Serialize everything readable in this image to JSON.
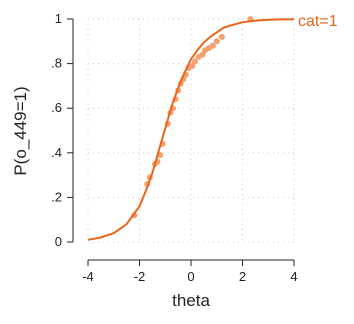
{
  "chart_data": {
    "type": "scatter",
    "xlabel": "theta",
    "ylabel": "P(o_449=1)",
    "xlim": [
      -4,
      4
    ],
    "ylim": [
      0,
      1
    ],
    "x_ticks": [
      "-4",
      "-2",
      "0",
      "2",
      "4"
    ],
    "x_tick_values": [
      -4,
      -2,
      0,
      2,
      4
    ],
    "y_ticks": [
      "0",
      ".2",
      ".4",
      ".6",
      ".8",
      "1"
    ],
    "y_tick_values": [
      0,
      0.2,
      0.4,
      0.6,
      0.8,
      1
    ],
    "grid": true,
    "series": [
      {
        "name": "cat=1",
        "kind": "fitted-curve",
        "color": "#e8651a",
        "x": [
          -4,
          -3.5,
          -3,
          -2.5,
          -2,
          -1.75,
          -1.5,
          -1.25,
          -1,
          -0.75,
          -0.5,
          -0.25,
          0,
          0.25,
          0.5,
          0.75,
          1,
          1.25,
          1.5,
          2,
          2.5,
          3,
          3.5,
          4
        ],
        "y": [
          0.01,
          0.02,
          0.04,
          0.08,
          0.16,
          0.23,
          0.31,
          0.41,
          0.51,
          0.61,
          0.69,
          0.76,
          0.82,
          0.86,
          0.895,
          0.92,
          0.94,
          0.96,
          0.97,
          0.985,
          0.993,
          0.997,
          0.998,
          0.999
        ]
      },
      {
        "kind": "observed-points",
        "color": "#f4a071",
        "x": [
          -2.2,
          -1.7,
          -1.6,
          -1.4,
          -1.3,
          -1.2,
          -1.1,
          -0.9,
          -0.8,
          -0.7,
          -0.6,
          -0.5,
          -0.4,
          -0.3,
          -0.2,
          -0.1,
          0.05,
          0.15,
          0.3,
          0.45,
          0.55,
          0.7,
          0.85,
          1.0,
          1.2,
          2.3
        ],
        "y": [
          0.12,
          0.26,
          0.29,
          0.35,
          0.36,
          0.39,
          0.44,
          0.53,
          0.58,
          0.6,
          0.64,
          0.68,
          0.71,
          0.73,
          0.75,
          0.78,
          0.79,
          0.81,
          0.83,
          0.84,
          0.86,
          0.87,
          0.88,
          0.9,
          0.92,
          1.0
        ]
      }
    ]
  }
}
